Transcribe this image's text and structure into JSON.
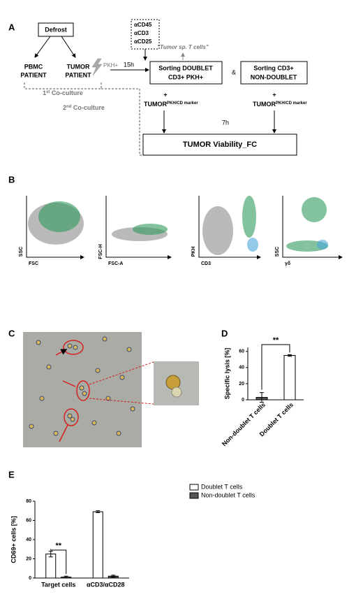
{
  "panel_labels": [
    "A",
    "B",
    "C",
    "D",
    "E"
  ],
  "diagram": {
    "defrost": "Defrost",
    "pbmc": [
      "PBMC",
      "PATIENT"
    ],
    "tumor": [
      "TUMOR",
      "PATIENT"
    ],
    "pkh": "PKH+",
    "antibodies": [
      "αCD45",
      "αCD3",
      "αCD25"
    ],
    "tumor_sp": "\"Tumor sp. T cells\"",
    "time1": "15h",
    "sort_doublet": [
      "Sorting DOUBLET",
      "CD3+ PKH+"
    ],
    "amp": "&",
    "sort_nondoublet": [
      "Sorting CD3+",
      "NON-DOUBLET"
    ],
    "coculture1": {
      "number": "1",
      "suffix": "st",
      "text": " Co-culture"
    },
    "coculture2": {
      "number": "2",
      "suffix": "nd",
      "text": " Co-culture"
    },
    "plus": "+",
    "tumor_marker": {
      "text": "TUMOR",
      "sup": "PKH/CD marker"
    },
    "time2": "7h",
    "viability": "TUMOR Viability_FC"
  },
  "flow_plots": [
    {
      "y": "SSC",
      "x": "FSC"
    },
    {
      "y": "FSC-H",
      "x": "FSC-A"
    },
    {
      "y": "PKH",
      "x": "CD3"
    },
    {
      "y": "SSC",
      "x": "γδ"
    }
  ],
  "chart_data": [
    {
      "type": "bar",
      "ylabel": "Specific lysis [%]",
      "categories": [
        "Non-doublet T cells",
        "Doublet T cells"
      ],
      "values": [
        3,
        55
      ],
      "errors": [
        6,
        1
      ],
      "colors": [
        "#555555",
        "#ffffff"
      ],
      "ylim": [
        0,
        65
      ],
      "yticks": [
        0,
        20,
        40,
        60
      ],
      "significance": "**"
    },
    {
      "type": "grouped_bar",
      "ylabel": "CD69+ cells [%]",
      "categories": [
        "Target cells",
        "αCD3/αCD28"
      ],
      "series": [
        {
          "name": "Doublet T cells",
          "color": "#ffffff",
          "values": [
            25,
            69
          ],
          "errors": [
            3,
            1
          ]
        },
        {
          "name": "Non-doublet T cells",
          "color": "#555555",
          "values": [
            1,
            2
          ],
          "errors": [
            1,
            1
          ]
        }
      ],
      "ylim": [
        0,
        80
      ],
      "yticks": [
        0,
        20,
        40,
        60,
        80
      ],
      "significance": "**"
    }
  ]
}
